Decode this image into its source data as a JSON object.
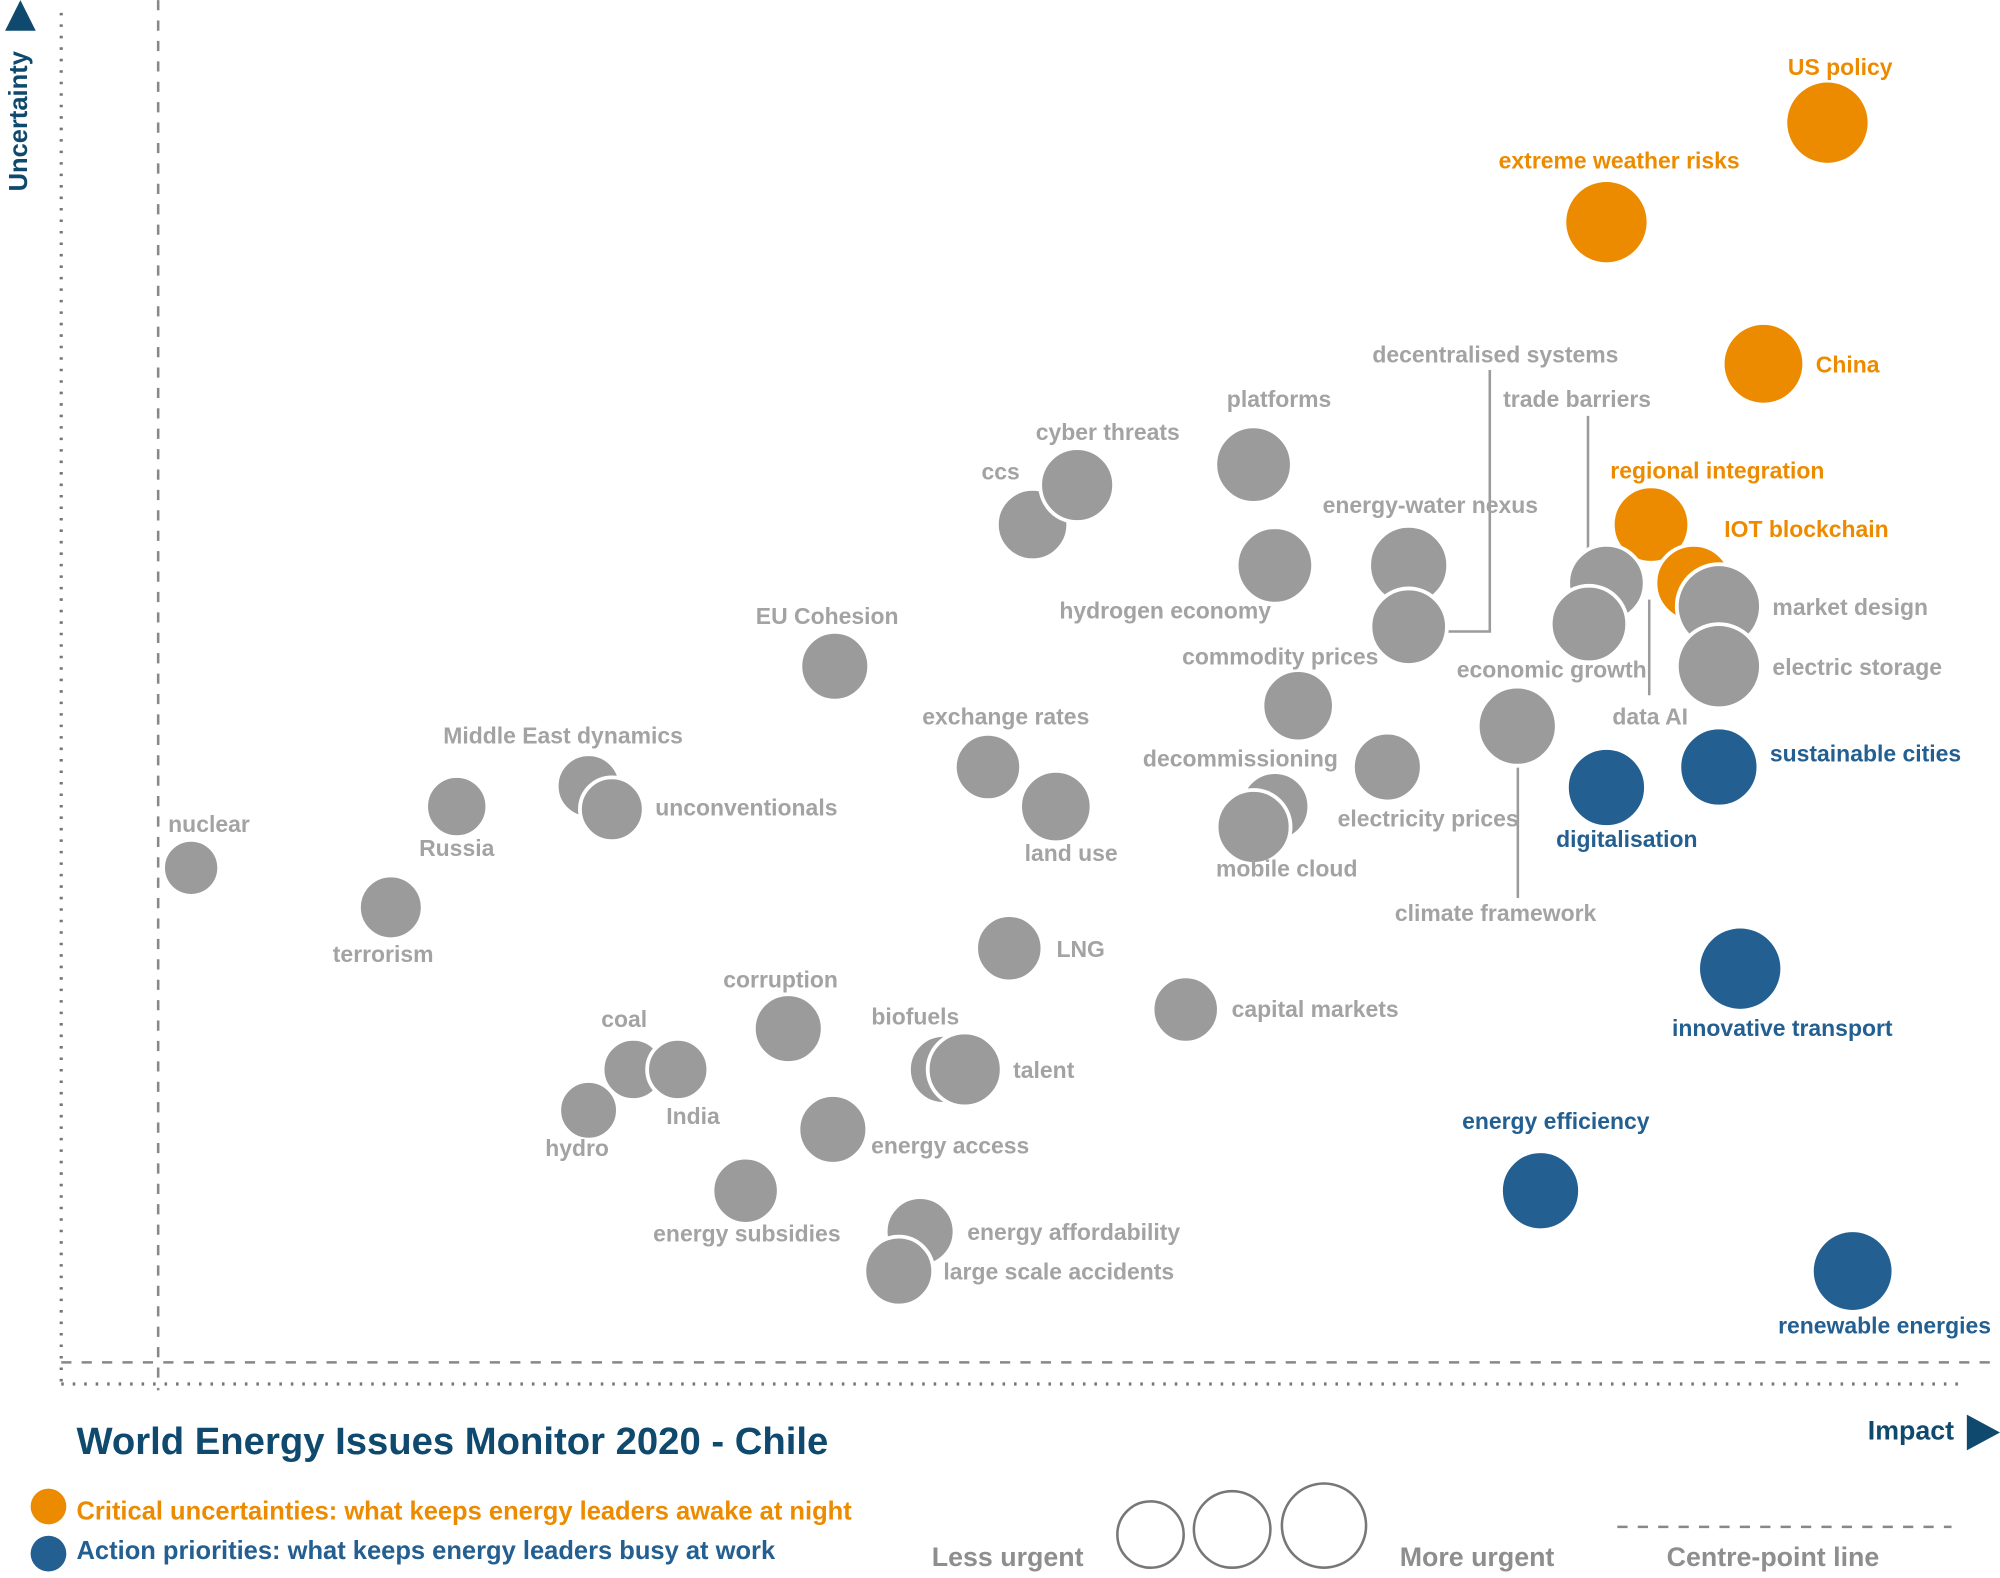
{
  "chart_data": {
    "type": "bubble",
    "title": "World Energy Issues Monitor 2020 - Chile",
    "x_label": "Impact",
    "y_label": "Uncertainty",
    "size_legend": {
      "low": "Less urgent",
      "high": "More urgent"
    },
    "centre_line_label": "Centre-point line",
    "xlim": [
      0,
      100
    ],
    "ylim": [
      0,
      100
    ],
    "series": [
      {
        "name": "Critical uncertainties: what keeps energy leaders awake at night",
        "color": "#ec8b00",
        "labels": [
          "US policy",
          "extreme weather risks",
          "China",
          "regional integration",
          "IOT blockchain"
        ],
        "x": [
          91.1,
          79.7,
          87.8,
          82.0,
          84.2
        ],
        "y": [
          91.0,
          83.7,
          73.3,
          61.5,
          57.2
        ],
        "sizes": [
          33,
          33,
          32,
          30,
          30
        ]
      },
      {
        "color": "#9b9b9b",
        "labels": [
          "nuclear",
          "Russia",
          "terrorism",
          "Middle East dynamics",
          "unconventionals",
          "EU Cohesion",
          "ccs",
          "cyber threats",
          "platforms",
          "hydrogen economy",
          "energy-water nexus",
          "decentralised systems",
          "trade barriers",
          "data AI",
          "market design",
          "electric storage",
          "commodity prices",
          "economic growth",
          "climate framework",
          "decommissioning",
          "mobile cloud",
          "electricity prices",
          "exchange rates",
          "land use",
          "LNG",
          "capital markets",
          "corruption",
          "biofuels",
          "talent",
          "coal",
          "India",
          "hydro",
          "energy access",
          "energy subsidies",
          "energy affordability",
          "large scale accidents"
        ],
        "x": [
          6.7,
          20.4,
          17.0,
          27.2,
          28.4,
          39.9,
          50.1,
          52.4,
          61.5,
          62.6,
          69.5,
          69.5,
          79.7,
          78.8,
          85.5,
          85.5,
          63.8,
          75.1,
          75.1,
          62.6,
          61.5,
          68.4,
          47.8,
          51.3,
          48.9,
          58.0,
          37.5,
          45.5,
          46.6,
          29.5,
          31.8,
          27.2,
          39.8,
          35.3,
          44.3,
          43.2
        ],
        "y": [
          36.3,
          40.8,
          33.4,
          42.3,
          40.6,
          51.1,
          61.5,
          64.4,
          65.9,
          58.5,
          58.5,
          54.0,
          57.2,
          54.2,
          55.5,
          51.1,
          48.2,
          46.7,
          46.7,
          40.8,
          39.3,
          43.7,
          43.7,
          40.8,
          30.4,
          25.9,
          24.5,
          21.5,
          21.5,
          21.5,
          21.5,
          18.5,
          17.1,
          12.6,
          9.6,
          6.7
        ],
        "sizes": [
          22,
          24,
          25,
          25,
          25,
          27,
          28,
          29,
          30,
          30,
          31,
          30,
          30,
          30,
          33,
          33,
          28,
          31,
          31,
          27,
          29,
          27,
          26,
          28,
          26,
          26,
          27,
          27,
          29,
          24,
          24,
          23,
          27,
          26,
          27,
          27
        ]
      },
      {
        "name": "Action priorities: what keeps energy leaders busy at work",
        "color": "#245f91",
        "labels": [
          "sustainable cities",
          "digitalisation",
          "innovative transport",
          "energy efficiency",
          "renewable energies"
        ],
        "x": [
          85.5,
          79.7,
          86.6,
          76.3,
          92.4
        ],
        "y": [
          43.7,
          42.2,
          28.9,
          12.6,
          6.7
        ],
        "sizes": [
          31,
          31,
          33,
          31,
          32
        ]
      }
    ]
  }
}
